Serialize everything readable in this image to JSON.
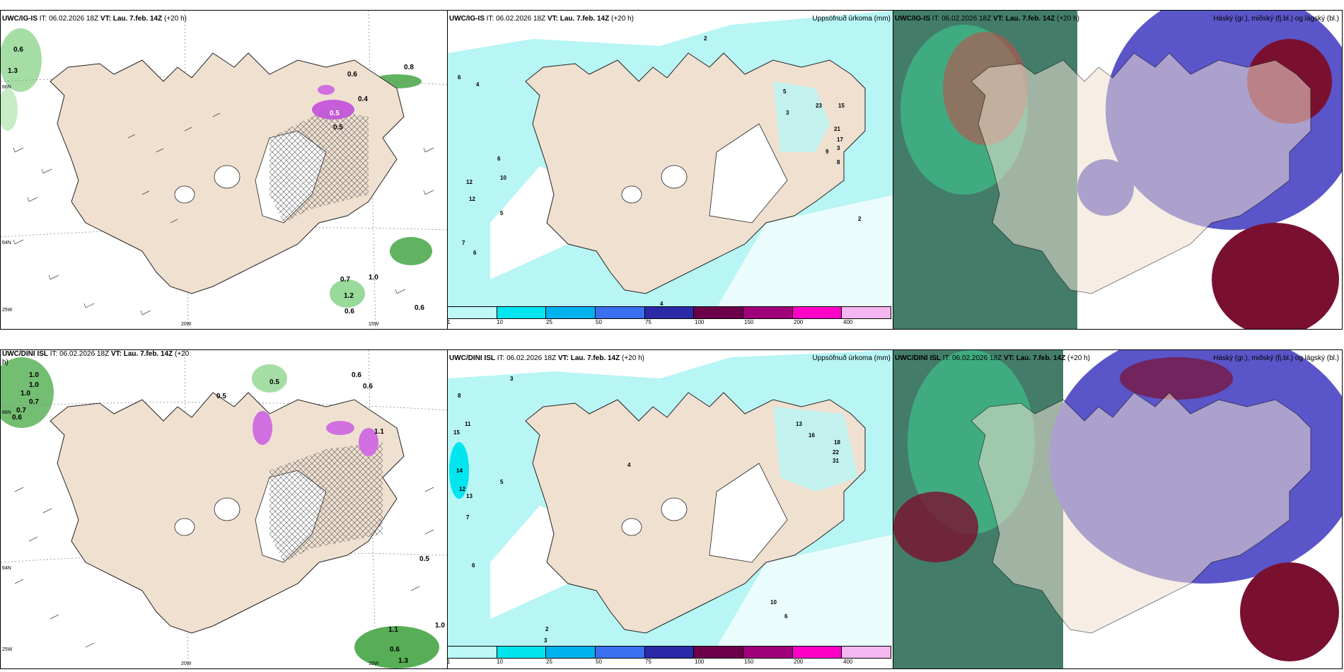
{
  "panels": {
    "row1": {
      "wind": {
        "model": "UWC/IG-IS",
        "it": "IT: 06.02.2026 18Z",
        "vt_label": "VT:",
        "vt": "Lau. 7.feb. 14Z",
        "lead": "(+20 h)",
        "lon_labels": [
          "20W",
          "15W"
        ],
        "lat_labels": [
          "66N",
          "64N",
          "25W"
        ],
        "values": [
          "0.6",
          "1.3",
          "0.6",
          "0.8",
          "0.5",
          "0.7",
          "1.0",
          "1.2",
          "0.6",
          "0.6",
          "0.5",
          "0.4"
        ]
      },
      "precip": {
        "model": "UWC/IG-IS",
        "it": "IT: 06.02.2026 18Z",
        "vt_label": "VT:",
        "vt": "Lau. 7.feb. 14Z",
        "lead": "(+20 h)",
        "field": "Uppsöfnuð úrkoma (mm)",
        "values": [
          "2",
          "6",
          "4",
          "12",
          "12",
          "5",
          "7",
          "6",
          "10",
          "6",
          "3",
          "2",
          "23",
          "15",
          "21",
          "17",
          "9",
          "8",
          "5",
          "3",
          "4"
        ]
      },
      "cloud": {
        "model": "UWC/IG-IS",
        "it": "IT: 06.02.2026 18Z",
        "vt_label": "VT:",
        "vt": "Lau. 7.feb. 14Z",
        "lead": "(+20 h)",
        "field": "Háský (gr.), miðský (fj.bl.) og lágský (bl.)"
      }
    },
    "row2": {
      "wind": {
        "model": "UWC/DINI ISL",
        "it": "IT: 06.02.2026 18Z",
        "vt_label": "VT:",
        "vt": "Lau. 7.feb. 14Z",
        "lead": "(+20",
        "lead_wrap": "h)",
        "lon_labels": [
          "20W",
          "15W"
        ],
        "lat_labels": [
          "66N",
          "64N",
          "25W"
        ],
        "values": [
          "1.0",
          "1.0",
          "1.0",
          "0.7",
          "0.7",
          "0.6",
          "0.5",
          "0.5",
          "0.6",
          "0.6",
          "1.1",
          "0.5",
          "1.1",
          "1.0",
          "0.6",
          "1.3"
        ]
      },
      "precip": {
        "model": "UWC/DINI ISL",
        "it": "IT: 06.02.2026 18Z",
        "vt_label": "VT:",
        "vt": "Lau. 7.feb. 14Z",
        "lead": "(+20 h)",
        "field": "Uppsöfnuð úrkoma (mm)",
        "values": [
          "8",
          "15",
          "11",
          "14",
          "12",
          "13",
          "3",
          "7",
          "6",
          "5",
          "13",
          "16",
          "18",
          "22",
          "31",
          "10",
          "6",
          "4",
          "2",
          "3"
        ]
      },
      "cloud": {
        "model": "UWC/DINI ISL",
        "it": "IT: 06.02.2026 18Z",
        "vt_label": "VT:",
        "vt": "Lau. 7.feb. 14Z",
        "lead": "(+20 h)",
        "field": "Háský (gr.), miðský (fj.bl.) og lágský (bl.)"
      }
    }
  },
  "colorbar": {
    "labels": [
      "1",
      "10",
      "25",
      "50",
      "75",
      "100",
      "150",
      "200",
      "400"
    ],
    "colors": [
      "#bdf7f7",
      "#00e5ee",
      "#00b2ee",
      "#3a6ff0",
      "#2a2aa8",
      "#6b0049",
      "#a0007a",
      "#ff00c8",
      "#f6b7f0"
    ]
  },
  "colors": {
    "land": "#efe0d0",
    "sea_precip": "#b8f5f5",
    "ice": "#ffffff",
    "high_cloud": "#2f8a66",
    "mid_cloud": "#5a55c8",
    "low_cloud": "#7a1030"
  }
}
